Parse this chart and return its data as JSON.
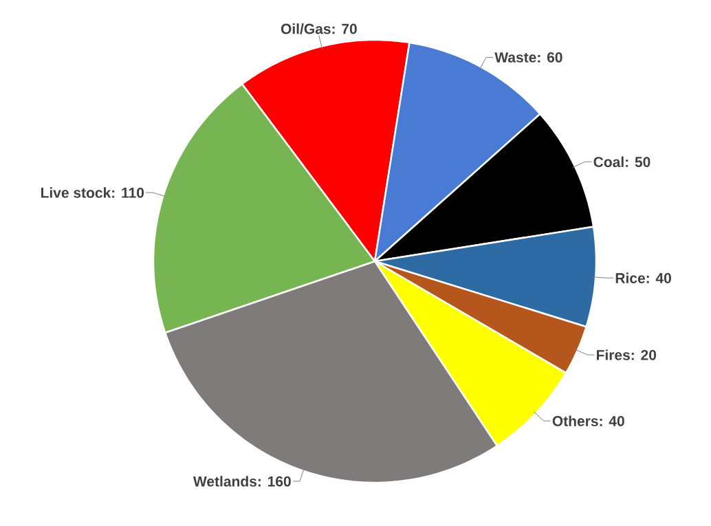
{
  "chart_data": {
    "type": "pie",
    "categories": [
      "Oil/Gas: 70",
      "Waste: 60",
      "Coal: 50",
      "Rice: 40",
      "Fires: 20",
      "Others: 40",
      "Wetlands: 160",
      "Live stock: 110"
    ],
    "values": [
      70,
      60,
      50,
      40,
      20,
      40,
      160,
      110
    ],
    "colors": [
      "#ff0000",
      "#4a7bd4",
      "#000000",
      "#2e6aa3",
      "#b5561c",
      "#ffff00",
      "#7f7b7b",
      "#77b553"
    ]
  }
}
